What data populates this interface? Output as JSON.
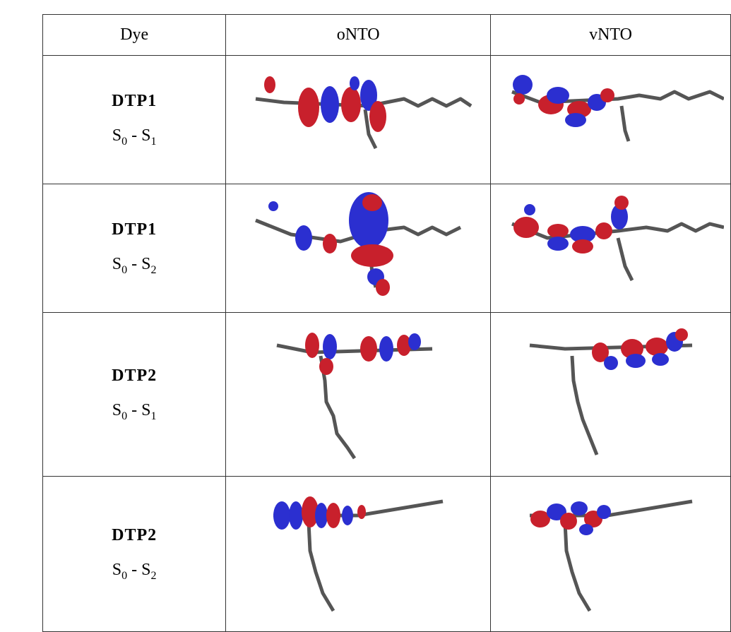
{
  "table": {
    "header": [
      "Dye",
      "oNTO",
      "vNTO"
    ],
    "rows": [
      {
        "dye": "DTP1",
        "transition": [
          "S",
          "0",
          " - S",
          "1"
        ]
      },
      {
        "dye": "DTP1",
        "transition": [
          "S",
          "0",
          " - S",
          "2"
        ]
      },
      {
        "dye": "DTP2",
        "transition": [
          "S",
          "0",
          " - S",
          "1"
        ]
      },
      {
        "dye": "DTP2",
        "transition": [
          "S",
          "0",
          " - S",
          "2"
        ]
      }
    ]
  }
}
